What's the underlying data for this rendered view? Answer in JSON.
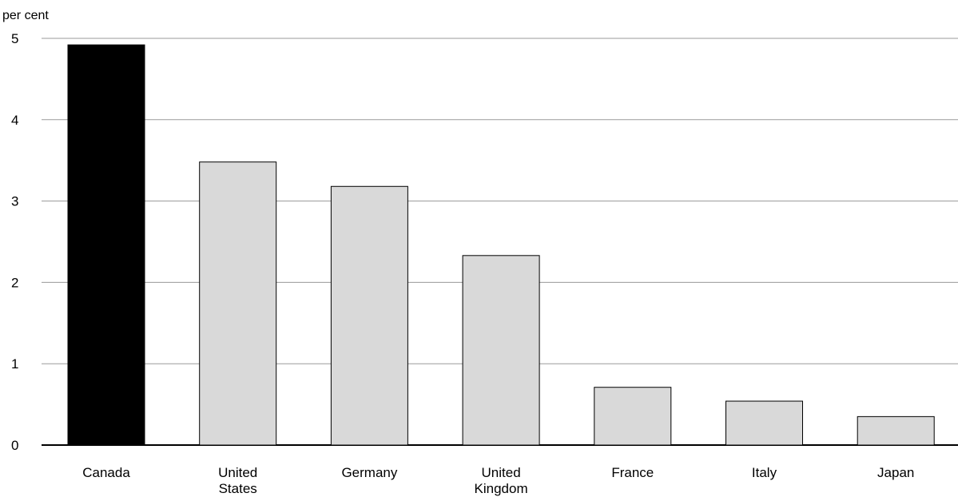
{
  "chart_data": {
    "type": "bar",
    "ylabel": "per cent",
    "ylim": [
      0,
      5
    ],
    "yticks": [
      "0",
      "1",
      "2",
      "3",
      "4",
      "5"
    ],
    "grid": true,
    "categories": [
      [
        "Canada"
      ],
      [
        "United",
        "States"
      ],
      [
        "Germany"
      ],
      [
        "United",
        "Kingdom"
      ],
      [
        "France"
      ],
      [
        "Italy"
      ],
      [
        "Japan"
      ]
    ],
    "values": [
      4.92,
      3.48,
      3.18,
      2.33,
      0.71,
      0.54,
      0.35
    ],
    "colors": [
      "#000000",
      "#d9d9d9",
      "#d9d9d9",
      "#d9d9d9",
      "#d9d9d9",
      "#d9d9d9",
      "#d9d9d9"
    ]
  }
}
